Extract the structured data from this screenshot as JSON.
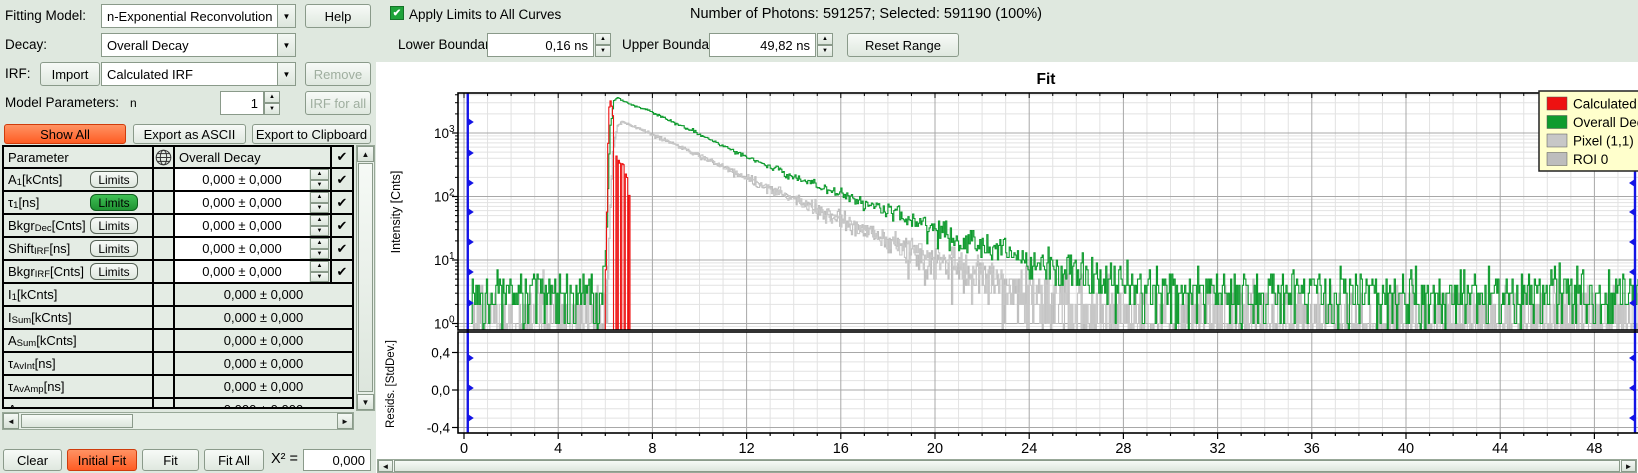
{
  "toolbar": {
    "fitting_model_label": "Fitting Model:",
    "fitting_model_value": "n-Exponential Reconvolution",
    "help": "Help",
    "apply_limits_label": "Apply Limits to All Curves",
    "photons_text": "Number of Photons: 591257; Selected: 591190 (100%)",
    "decay_label": "Decay:",
    "decay_value": "Overall Decay",
    "lower_boundary_label": "Lower Boundary:",
    "lower_boundary_value": "0,16 ns",
    "upper_boundary_label": "Upper Boundary:",
    "upper_boundary_value": "49,82 ns",
    "reset_range": "Reset Range",
    "irf_label": "IRF:",
    "irf_import": "Import",
    "irf_value": "Calculated IRF",
    "irf_remove": "Remove",
    "model_parameters_label": "Model Parameters:",
    "model_parameters_n": "n",
    "n_value": "1",
    "irf_for_all": "IRF for all"
  },
  "actions": {
    "show_all": "Show All",
    "export_ascii": "Export as ASCII",
    "export_clipboard": "Export to Clipboard"
  },
  "table": {
    "header": {
      "parameter": "Parameter",
      "curve": "Overall Decay"
    },
    "limits_label": "Limits",
    "value_text": "0,000 ± 0,000",
    "rows": [
      {
        "main": "A",
        "sub": "1",
        "unit": "[kCnts]",
        "limits": true,
        "limits_green": false,
        "editable": true
      },
      {
        "main": "τ",
        "sub": "1",
        "unit": "[ns]",
        "limits": true,
        "limits_green": true,
        "editable": true
      },
      {
        "main": "Bkgr",
        "sub": "Dec",
        "unit": "[Cnts]",
        "limits": true,
        "limits_green": false,
        "editable": true
      },
      {
        "main": "Shift",
        "sub": "IRF",
        "unit": "[ns]",
        "limits": true,
        "limits_green": false,
        "editable": true
      },
      {
        "main": "Bkgr",
        "sub": "IRF",
        "unit": "[Cnts]",
        "limits": true,
        "limits_green": false,
        "editable": true
      },
      {
        "main": "I",
        "sub": "1",
        "unit": "[kCnts]",
        "limits": false,
        "limits_green": false,
        "editable": false
      },
      {
        "main": "I",
        "sub": "Sum",
        "unit": "[kCnts]",
        "limits": false,
        "limits_green": false,
        "editable": false
      },
      {
        "main": "A",
        "sub": "Sum",
        "unit": "[kCnts]",
        "limits": false,
        "limits_green": false,
        "editable": false
      },
      {
        "main": "τ",
        "sub": "AvInt",
        "unit": "[ns]",
        "limits": false,
        "limits_green": false,
        "editable": false
      },
      {
        "main": "τ",
        "sub": "AvAmp",
        "unit": "[ns]",
        "limits": false,
        "limits_green": false,
        "editable": false
      },
      {
        "main": "A",
        "sub": "",
        "unit": "",
        "limits": false,
        "limits_green": false,
        "editable": false
      }
    ]
  },
  "footer": {
    "clear": "Clear",
    "initial_fit": "Initial Fit",
    "fit": "Fit",
    "fit_all": "Fit All",
    "chi2_label": "X² =",
    "chi2_value": "0,000"
  },
  "icons": {
    "check": "✔",
    "dropdown_arrow": "▼",
    "spinner_up": "▲",
    "spinner_down": "▼",
    "scroll_left": "◄",
    "scroll_right": "►",
    "scroll_up": "▲",
    "scroll_down": "▼"
  },
  "colors": {
    "panel_bg": "#dfe8df",
    "accent_orange": "#ff6a33",
    "limits_green": "#2aa83e",
    "checkbox_green": "#1ea33a",
    "legend_bg": "#ffffcc",
    "boundary_blue": "#1414e6",
    "grid_major": "#a8a8a8",
    "grid_minor": "#e2e2e2"
  },
  "chart": {
    "title": "Fit",
    "ylabel": "Intensity [Cnts]",
    "resid_ylabel": "Resids. [StdDev.]",
    "x_ticks": [
      0,
      4,
      8,
      12,
      16,
      20,
      24,
      28,
      32,
      36,
      40,
      44,
      48
    ],
    "y_ticks": [
      {
        "base": "10",
        "exp": "3"
      },
      {
        "base": "10",
        "exp": "2"
      },
      {
        "base": "10",
        "exp": "1"
      },
      {
        "base": "10",
        "exp": "0"
      }
    ],
    "resid_ticks": [
      {
        "label": "0,4",
        "value": 0.4
      },
      {
        "label": "0,0",
        "value": 0.0
      },
      {
        "label": "-0,4",
        "value": -0.4
      }
    ],
    "legend": [
      {
        "label": "Calculated IRF",
        "color": "#ee1111"
      },
      {
        "label": "Overall Decay",
        "color": "#0f9b2e"
      },
      {
        "label": "Pixel (1,1)",
        "color": "#c7c7c7"
      },
      {
        "label": "ROI 0",
        "color": "#bdbdbd"
      }
    ],
    "lower_boundary_ns": 0.16,
    "upper_boundary_ns": 49.82
  },
  "chart_data": {
    "type": "line",
    "x_unit": "ns",
    "x_range": [
      0,
      50
    ],
    "y_scale": "log",
    "y_range_counts": [
      0.8,
      4300
    ],
    "bin_ns": 0.05,
    "noise": "poisson",
    "series": [
      {
        "name": "ROI 0",
        "color": "#bdbdbd",
        "seed": 911,
        "anchors": [
          [
            0.3,
            1.1
          ],
          [
            5.95,
            1.1
          ],
          [
            6.1,
            8
          ],
          [
            6.2,
            80
          ],
          [
            6.3,
            500
          ],
          [
            6.5,
            1300
          ],
          [
            6.7,
            1500
          ],
          [
            7,
            1350
          ],
          [
            8,
            950
          ],
          [
            9,
            640
          ],
          [
            10,
            430
          ],
          [
            11,
            290
          ],
          [
            12,
            195
          ],
          [
            13,
            132
          ],
          [
            14,
            90
          ],
          [
            15,
            62
          ],
          [
            16,
            43
          ],
          [
            17,
            30
          ],
          [
            18,
            21
          ],
          [
            19,
            15
          ],
          [
            20,
            10.5
          ],
          [
            21,
            7.5
          ],
          [
            22,
            5.4
          ],
          [
            23,
            3.9
          ],
          [
            24,
            2.9
          ],
          [
            25,
            2.2
          ],
          [
            26,
            1.7
          ],
          [
            27,
            1.4
          ],
          [
            28,
            1.2
          ],
          [
            50.6,
            1.0
          ]
        ]
      },
      {
        "name": "Pixel (1,1)",
        "color": "#c7c7c7",
        "seed": 271,
        "anchors": [
          [
            0.3,
            1.1
          ],
          [
            5.95,
            1.1
          ],
          [
            6.1,
            8
          ],
          [
            6.2,
            80
          ],
          [
            6.3,
            500
          ],
          [
            6.5,
            1300
          ],
          [
            6.7,
            1500
          ],
          [
            7,
            1350
          ],
          [
            8,
            950
          ],
          [
            9,
            640
          ],
          [
            10,
            430
          ],
          [
            11,
            290
          ],
          [
            12,
            195
          ],
          [
            13,
            132
          ],
          [
            14,
            90
          ],
          [
            15,
            62
          ],
          [
            16,
            43
          ],
          [
            17,
            30
          ],
          [
            18,
            21
          ],
          [
            19,
            15
          ],
          [
            20,
            10.5
          ],
          [
            21,
            7.5
          ],
          [
            22,
            5.4
          ],
          [
            23,
            3.9
          ],
          [
            24,
            2.9
          ],
          [
            25,
            2.2
          ],
          [
            26,
            1.7
          ],
          [
            27,
            1.4
          ],
          [
            28,
            1.2
          ],
          [
            50.6,
            1.0
          ]
        ]
      },
      {
        "name": "Overall Decay",
        "color": "#0f9b2e",
        "seed": 1337,
        "anchors": [
          [
            0.3,
            3.2
          ],
          [
            5.85,
            3.2
          ],
          [
            6.0,
            12
          ],
          [
            6.1,
            150
          ],
          [
            6.2,
            1300
          ],
          [
            6.35,
            3300
          ],
          [
            6.5,
            3600
          ],
          [
            7,
            2900
          ],
          [
            8,
            2100
          ],
          [
            9,
            1400
          ],
          [
            10,
            950
          ],
          [
            11,
            620
          ],
          [
            12,
            420
          ],
          [
            13,
            290
          ],
          [
            14,
            205
          ],
          [
            15,
            150
          ],
          [
            16,
            108
          ],
          [
            17,
            79
          ],
          [
            18,
            58
          ],
          [
            19,
            43
          ],
          [
            20,
            32
          ],
          [
            21,
            24
          ],
          [
            22,
            18
          ],
          [
            23,
            14
          ],
          [
            24,
            11
          ],
          [
            25,
            8.5
          ],
          [
            26,
            7
          ],
          [
            27,
            5.7
          ],
          [
            28,
            4.8
          ],
          [
            29,
            4.1
          ],
          [
            30,
            3.6
          ],
          [
            31,
            3.3
          ],
          [
            50.6,
            3.1
          ]
        ]
      },
      {
        "name": "Calculated IRF",
        "color": "#ee1111",
        "seed": 77,
        "end_zero": true,
        "dropout": {
          "from": 6.3,
          "to": 7.12,
          "p": 0.45
        },
        "anchors": [
          [
            5.88,
            0.05
          ],
          [
            5.95,
            1.5
          ],
          [
            6.0,
            8
          ],
          [
            6.05,
            60
          ],
          [
            6.1,
            700
          ],
          [
            6.15,
            2500
          ],
          [
            6.2,
            3100
          ],
          [
            6.28,
            2500
          ],
          [
            6.33,
            1200
          ],
          [
            6.38,
            520
          ],
          [
            6.5,
            400
          ],
          [
            6.65,
            330
          ],
          [
            6.8,
            270
          ],
          [
            6.95,
            190
          ],
          [
            7.02,
            90
          ],
          [
            7.08,
            8
          ],
          [
            7.12,
            0.4
          ]
        ]
      }
    ]
  }
}
